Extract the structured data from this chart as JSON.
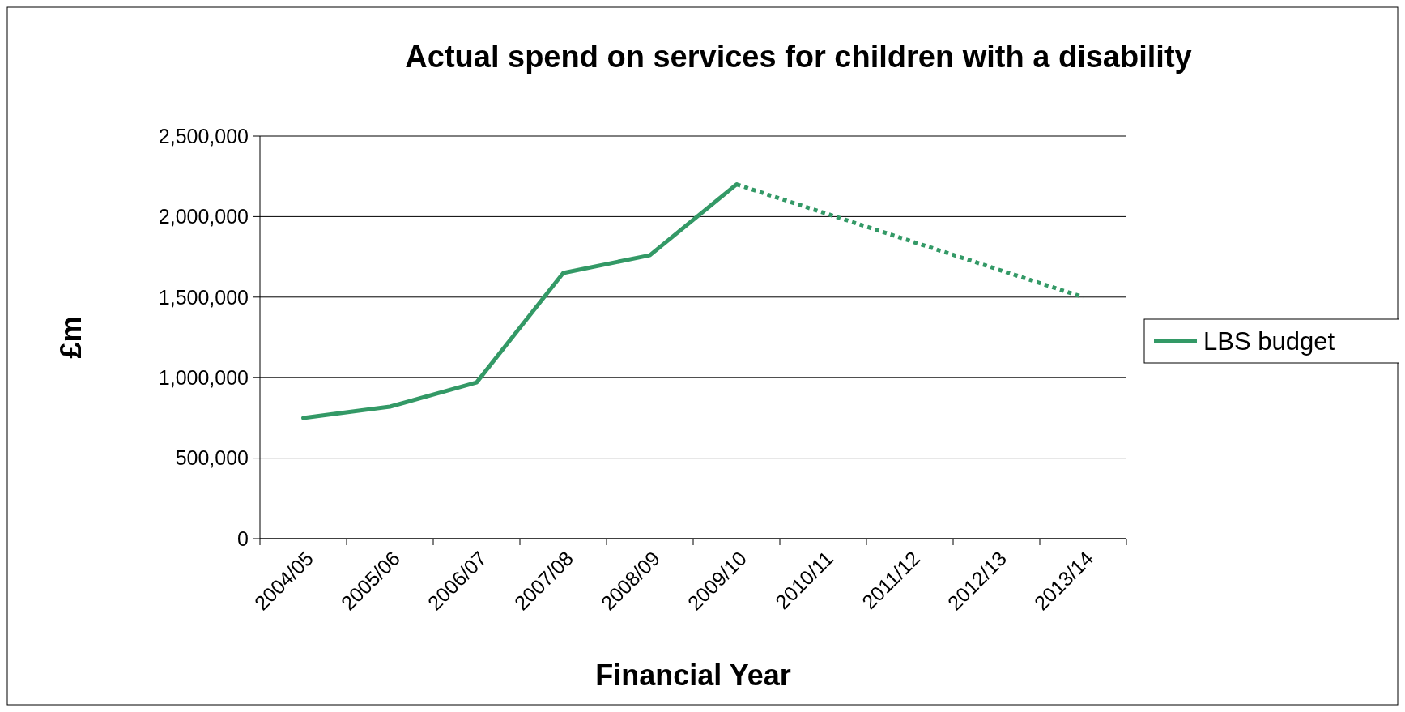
{
  "chart_data": {
    "type": "line",
    "title": "Actual spend on services for children with a disability",
    "xlabel": "Financial Year",
    "ylabel": "£m",
    "categories": [
      "2004/05",
      "2005/06",
      "2006/07",
      "2007/08",
      "2008/09",
      "2009/10",
      "2010/11",
      "2011/12",
      "2012/13",
      "2013/14"
    ],
    "series": [
      {
        "name": "LBS budget",
        "color": "#339966",
        "line_style": "solid",
        "values": [
          750000,
          820000,
          970000,
          1650000,
          1760000,
          2200000,
          null,
          null,
          null,
          null
        ]
      },
      {
        "color": "#339966",
        "line_style": "dotted",
        "values": [
          null,
          null,
          null,
          null,
          null,
          2200000,
          2025000,
          1850000,
          1675000,
          1500000
        ]
      }
    ],
    "ylim": [
      0,
      2500000
    ],
    "yticks": [
      {
        "value": 0,
        "label": "0"
      },
      {
        "value": 500000,
        "label": "500,000"
      },
      {
        "value": 1000000,
        "label": "1,000,000"
      },
      {
        "value": 1500000,
        "label": "1,500,000"
      },
      {
        "value": 2000000,
        "label": "2,000,000"
      },
      {
        "value": 2500000,
        "label": "2,500,000"
      }
    ],
    "grid": "y",
    "legend": "right",
    "marker": "none"
  }
}
